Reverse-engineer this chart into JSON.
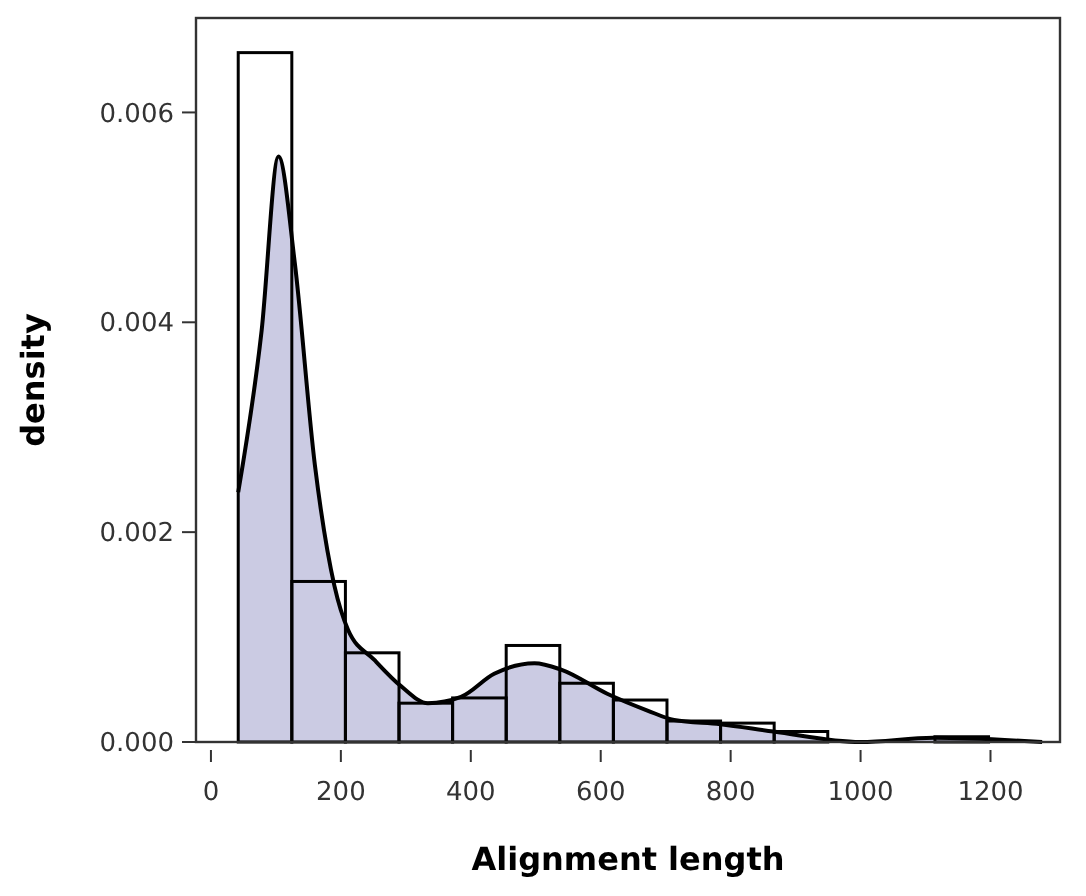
{
  "chart_data": {
    "type": "histogram",
    "xlabel": "Alignment length",
    "ylabel": "density",
    "bins": [
      42,
      124.5,
      207,
      289.5,
      372,
      454.5,
      537,
      619.5,
      702,
      784.5,
      867,
      949.5,
      1032,
      1114.5,
      1197,
      1279.5
    ],
    "series": [
      {
        "type": "area",
        "color": "#cbcbe3",
        "x": [
          42,
          78,
          104,
          129,
          160,
          190,
          211,
          252,
          293,
          334,
          385,
          436,
          498,
          539,
          610,
          672,
          713,
          784,
          866,
          1000,
          1112,
          1279.5
        ],
        "values": [
          0.00238,
          0.00392,
          0.00558,
          0.00457,
          0.00264,
          0.00149,
          0.00107,
          0.00078,
          0.00053,
          0.00037,
          0.00043,
          0.00065,
          0.00075,
          0.00069,
          0.00046,
          0.0003,
          0.00021,
          0.00017,
          0.0001,
          0,
          4e-05,
          0
        ]
      },
      {
        "color": "#000000",
        "values": [
          0.00657,
          0.00153,
          0.00085,
          0.00037,
          0.00042,
          0.00092,
          0.00056,
          0.0004,
          0.0002,
          0.00018,
          0.0001,
          0,
          0,
          5e-05,
          0
        ]
      }
    ],
    "xlim": [
      -23,
      1307
    ],
    "ylim": [
      0,
      0.0069
    ],
    "xticks": [
      0,
      200,
      400,
      600,
      800,
      1000,
      1200
    ],
    "yticks": [
      {
        "value": 0,
        "label": "0.000"
      },
      {
        "value": 0.002,
        "label": "0.002"
      },
      {
        "value": 0.004,
        "label": "0.004"
      },
      {
        "value": 0.006,
        "label": "0.006"
      }
    ],
    "grid": false
  }
}
